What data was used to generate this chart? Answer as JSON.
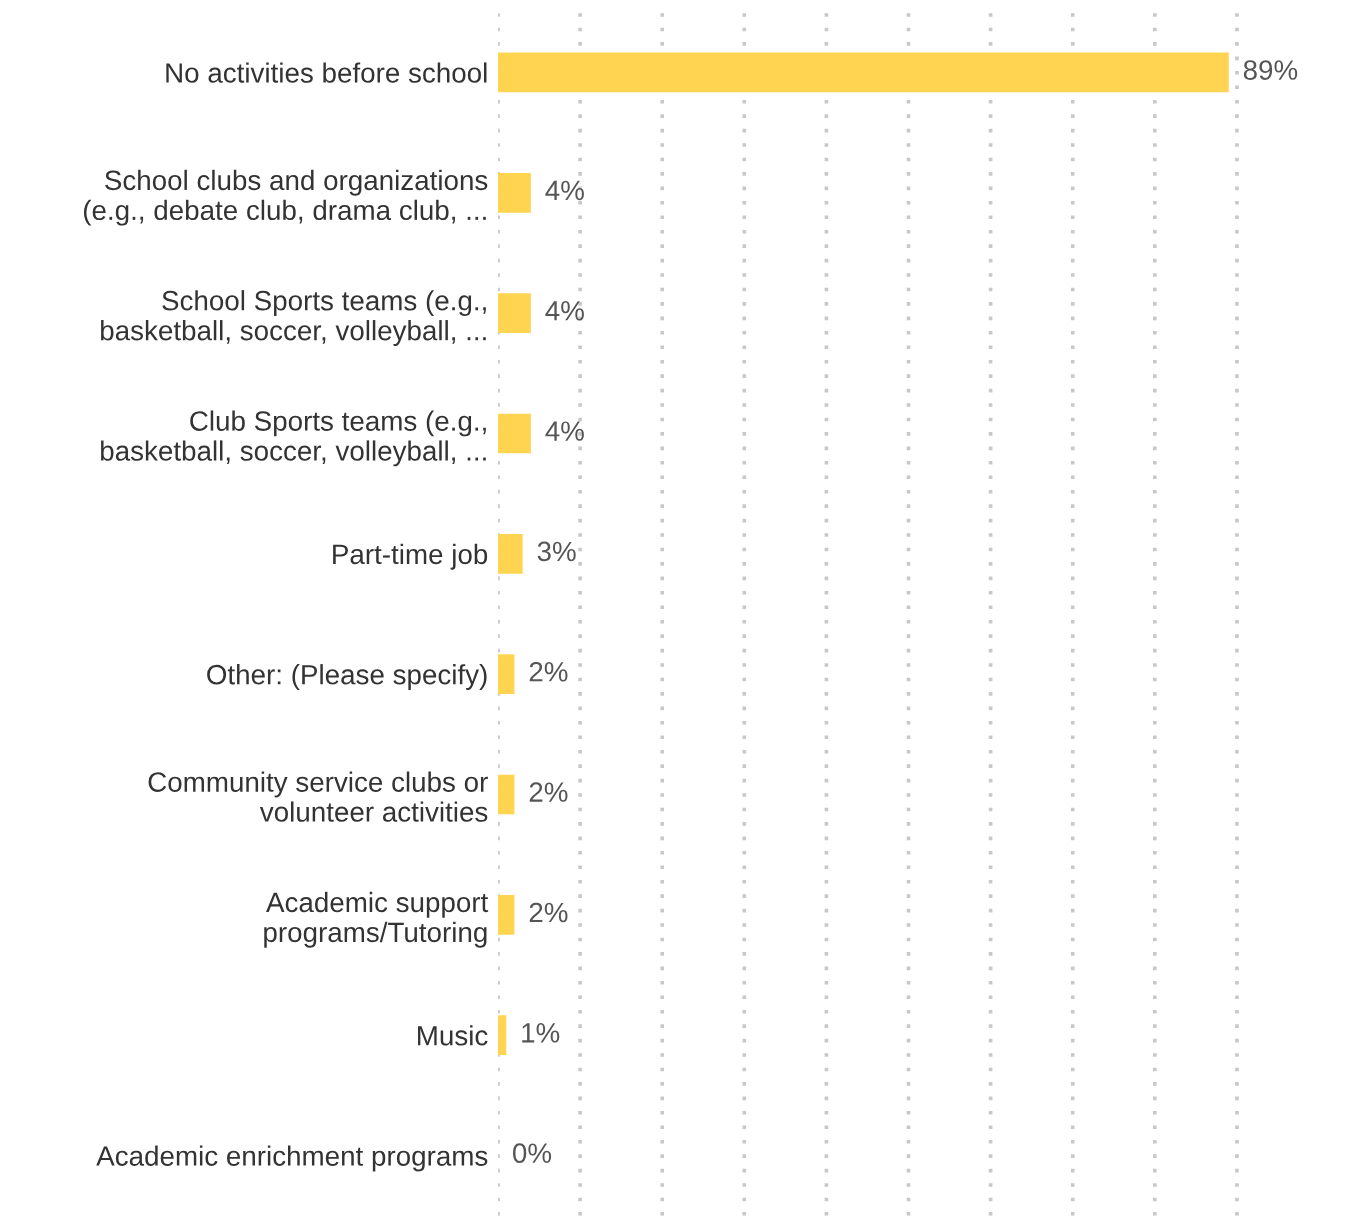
{
  "chart_data": {
    "type": "bar",
    "orientation": "horizontal",
    "categories": [
      "No activities before school",
      "School clubs and organizations\n(e.g., debate club, drama club, ...",
      "School Sports teams (e.g.,\nbasketball, soccer, volleyball, ...",
      "Club Sports teams (e.g.,\nbasketball, soccer, volleyball, ...",
      "Part-time job",
      "Other: (Please specify)",
      "Community service clubs or\nvolunteer activities",
      "Academic support\nprograms/Tutoring",
      "Music",
      "Academic enrichment programs"
    ],
    "values": [
      89,
      4,
      4,
      4,
      3,
      2,
      2,
      2,
      1,
      0
    ],
    "value_labels": [
      "89%",
      "4%",
      "4%",
      "4%",
      "3%",
      "2%",
      "2%",
      "2%",
      "1%",
      "0%"
    ],
    "color": "#ffd450",
    "xticks": [
      {
        "value": 0,
        "label": null
      },
      {
        "value": 10,
        "label": null
      },
      {
        "value": 20,
        "label": null
      },
      {
        "value": 30,
        "label": null
      },
      {
        "value": 40,
        "label": null
      },
      {
        "value": 50,
        "label": null
      },
      {
        "value": 60,
        "label": null
      },
      {
        "value": 70,
        "label": null
      },
      {
        "value": 80,
        "label": null
      },
      {
        "value": 90,
        "label": null
      }
    ],
    "grid": "x",
    "tick_labels": "y",
    "legend": false
  }
}
